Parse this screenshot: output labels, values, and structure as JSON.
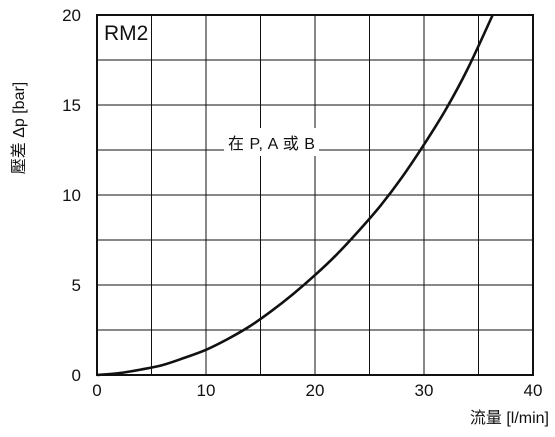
{
  "chart_data": {
    "type": "line",
    "tag": "RM2",
    "annotation": "在 P, A 或 B",
    "xlabel": "流量 [l/min]",
    "ylabel": "壓差 Δp [bar]",
    "xlim": [
      0,
      40
    ],
    "ylim": [
      0,
      20
    ],
    "xticks": [
      0,
      10,
      20,
      30,
      40
    ],
    "yticks": [
      0,
      5,
      10,
      15,
      20
    ],
    "grid": true,
    "series": [
      {
        "x": [
          0,
          2,
          4,
          6,
          8,
          10,
          12,
          14,
          16,
          18,
          20,
          22,
          24,
          26,
          28,
          30,
          32,
          34,
          36.3
        ],
        "y": [
          0,
          0.1,
          0.3,
          0.55,
          0.95,
          1.4,
          2.0,
          2.7,
          3.55,
          4.5,
          5.55,
          6.7,
          8.0,
          9.4,
          11.0,
          12.8,
          14.75,
          17.0,
          20.0
        ]
      }
    ]
  }
}
